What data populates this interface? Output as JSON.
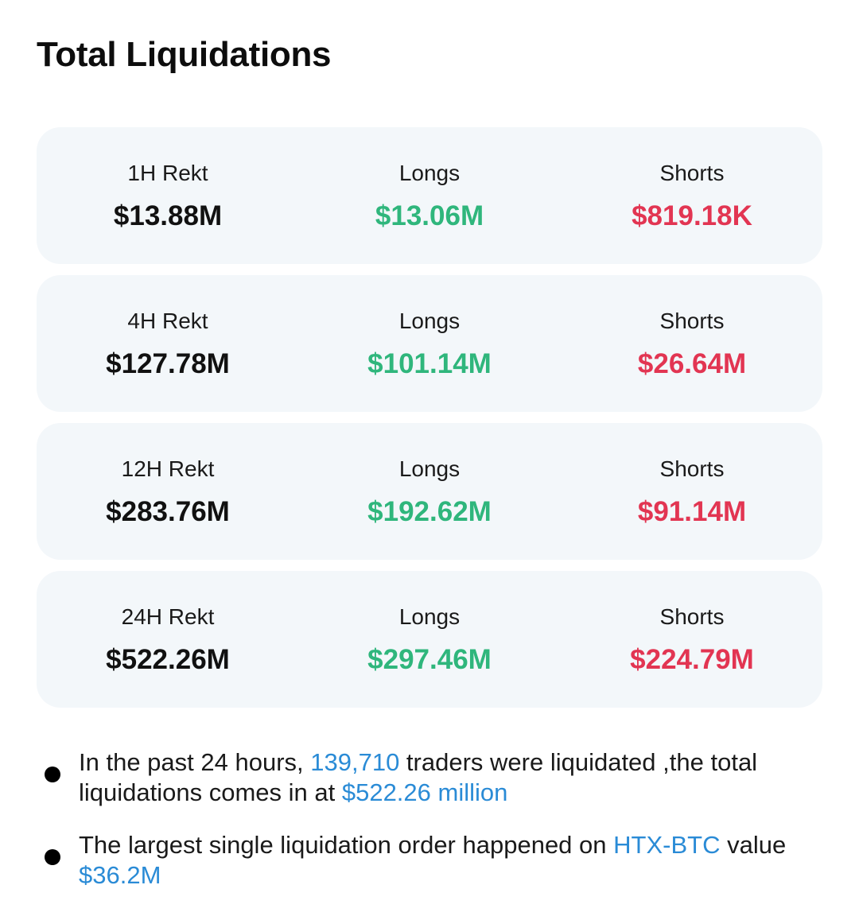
{
  "page_title": "Total Liquidations",
  "colors": {
    "long": "#2fb67c",
    "short": "#e23552",
    "highlight": "#2a8bd6",
    "card_bg": "#f3f7fa"
  },
  "rows": [
    {
      "period_label": "1H Rekt",
      "total": "$13.88M",
      "longs_label": "Longs",
      "longs": "$13.06M",
      "shorts_label": "Shorts",
      "shorts": "$819.18K"
    },
    {
      "period_label": "4H Rekt",
      "total": "$127.78M",
      "longs_label": "Longs",
      "longs": "$101.14M",
      "shorts_label": "Shorts",
      "shorts": "$26.64M"
    },
    {
      "period_label": "12H Rekt",
      "total": "$283.76M",
      "longs_label": "Longs",
      "longs": "$192.62M",
      "shorts_label": "Shorts",
      "shorts": "$91.14M"
    },
    {
      "period_label": "24H Rekt",
      "total": "$522.26M",
      "longs_label": "Longs",
      "longs": "$297.46M",
      "shorts_label": "Shorts",
      "shorts": "$224.79M"
    }
  ],
  "notes": [
    {
      "part1": "In the past 24 hours, ",
      "traders": "139,710",
      "part2": " traders were liquidated ,the total liquidations comes in at ",
      "amount": "$522.26 million"
    },
    {
      "part1": "The largest single liquidation order happened on ",
      "exchange": "HTX-BTC",
      "part2": " value ",
      "amount": "$36.2M"
    }
  ]
}
